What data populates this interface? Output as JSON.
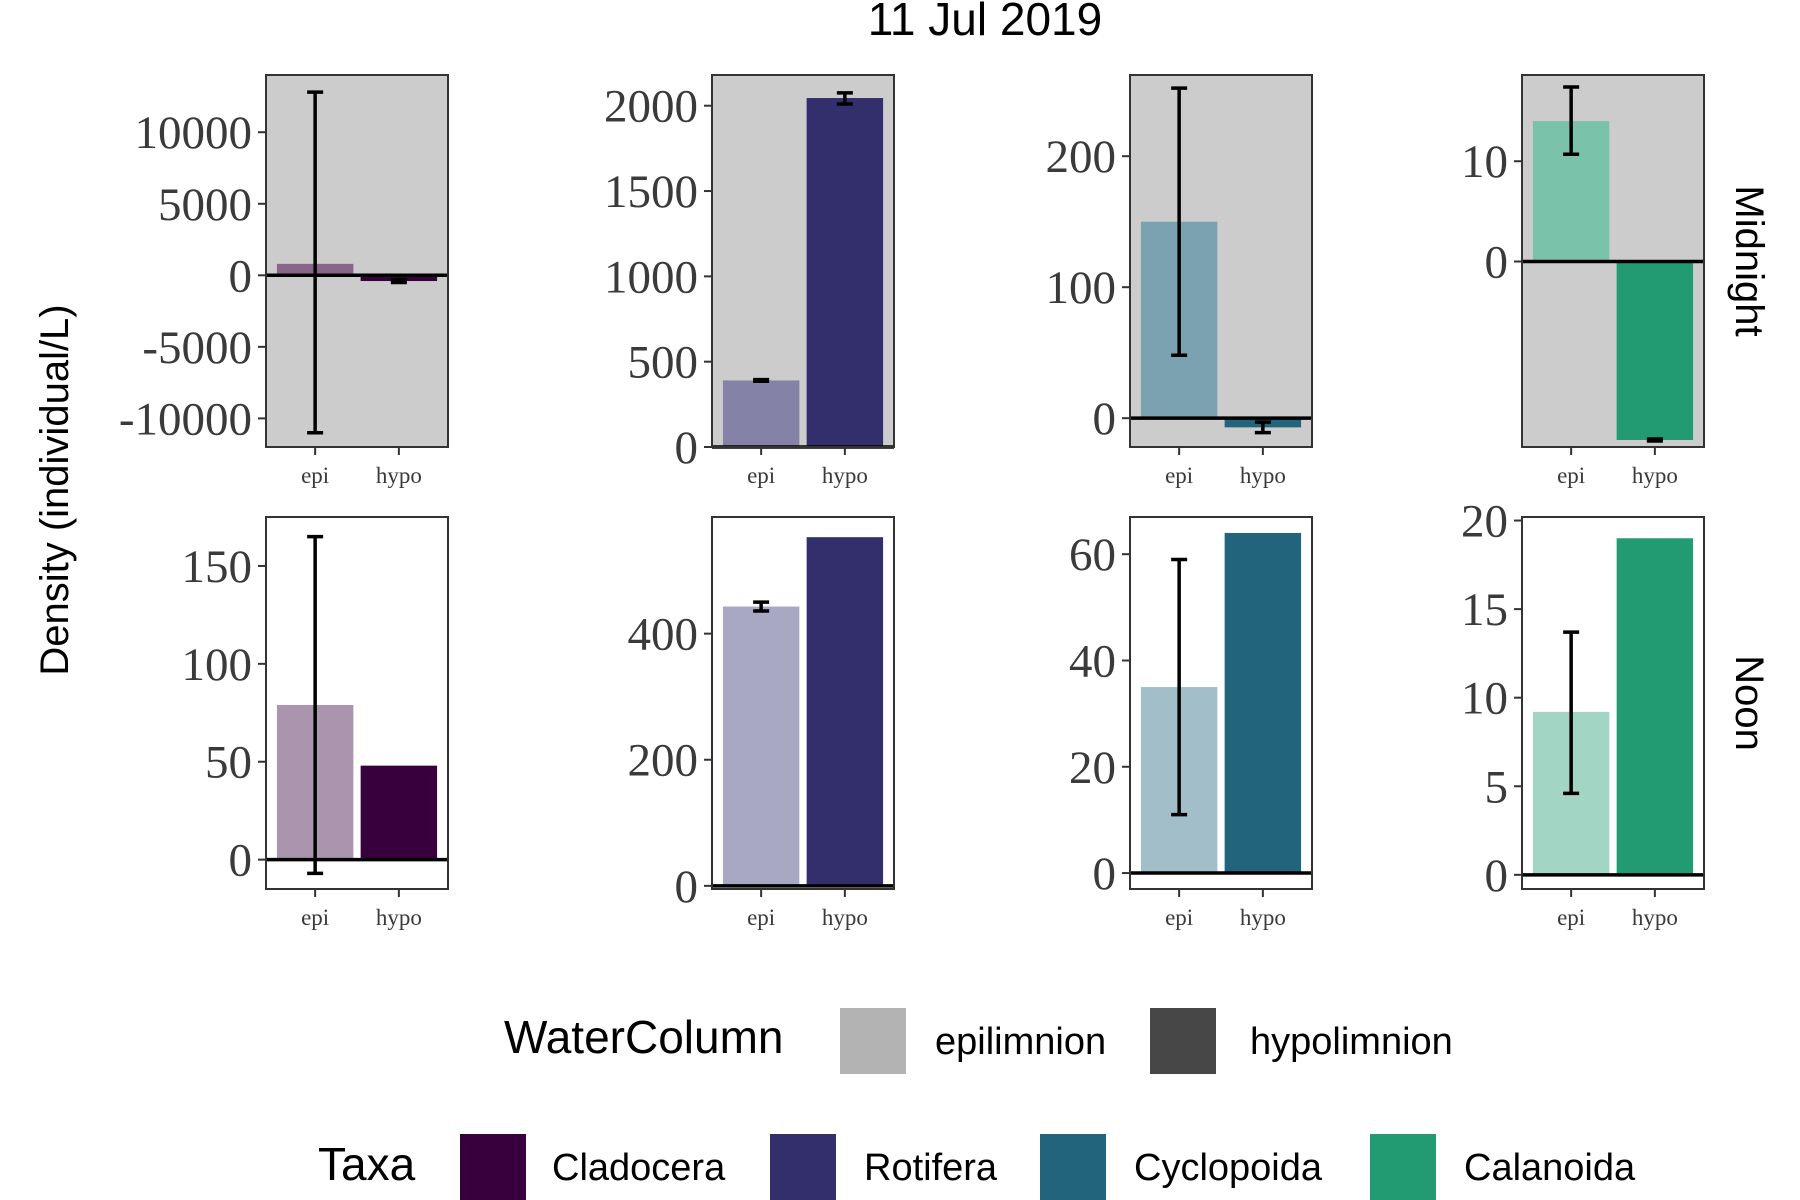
{
  "chart_data": {
    "type": "bar",
    "title": "11 Jul 2019",
    "ylabel": "Density (individual/L)",
    "categories": [
      "epi",
      "hypo"
    ],
    "rows": [
      "Midnight",
      "Noon"
    ],
    "water_column_legend": {
      "title": "WaterColumn",
      "entries": [
        {
          "label": "epilimnion",
          "color": "#b3b3b3"
        },
        {
          "label": "hypolimnion",
          "color": "#474747"
        }
      ]
    },
    "taxa_legend": {
      "title": "Taxa",
      "entries": [
        {
          "label": "Cladocera",
          "color": "#38003c"
        },
        {
          "label": "Rotifera",
          "color": "#332f6d"
        },
        {
          "label": "Cyclopoida",
          "color": "#21647b"
        },
        {
          "label": "Calanoida",
          "color": "#229b72"
        }
      ]
    },
    "panels": [
      {
        "row": "Midnight",
        "taxon": "Cladocera",
        "color": "#38003c",
        "background": "#cccccc",
        "ylim": [
          -12000,
          14000
        ],
        "yticks": [
          -10000,
          -5000,
          0,
          5000,
          10000
        ],
        "values": [
          800,
          -400
        ],
        "error": [
          [
            -11000,
            12800
          ],
          [
            -500,
            -300
          ]
        ]
      },
      {
        "row": "Midnight",
        "taxon": "Rotifera",
        "color": "#332f6d",
        "background": "#cccccc",
        "ylim": [
          0,
          2180
        ],
        "yticks": [
          0,
          500,
          1000,
          1500,
          2000
        ],
        "values": [
          390,
          2045
        ],
        "error": [
          [
            385,
            395
          ],
          [
            2010,
            2075
          ]
        ]
      },
      {
        "row": "Midnight",
        "taxon": "Cyclopoida",
        "color": "#21647b",
        "background": "#cccccc",
        "ylim": [
          -22,
          262
        ],
        "yticks": [
          0,
          100,
          200
        ],
        "values": [
          150,
          -7
        ],
        "error": [
          [
            48,
            252
          ],
          [
            -11,
            -3
          ]
        ]
      },
      {
        "row": "Midnight",
        "taxon": "Calanoida",
        "color": "#229b72",
        "background": "#cccccc",
        "ylim": [
          -18.5,
          18.6
        ],
        "yticks": [
          0,
          10
        ],
        "values": [
          14,
          -17.8
        ],
        "error": [
          [
            10.7,
            17.4
          ],
          [
            -17.9,
            -17.7
          ]
        ]
      },
      {
        "row": "Noon",
        "taxon": "Cladocera",
        "color": "#38003c",
        "background": "#ffffff",
        "ylim": [
          -15,
          175
        ],
        "yticks": [
          0,
          50,
          100,
          150
        ],
        "values": [
          79,
          48
        ],
        "error": [
          [
            -7,
            165
          ],
          null
        ]
      },
      {
        "row": "Noon",
        "taxon": "Rotifera",
        "color": "#332f6d",
        "background": "#ffffff",
        "ylim": [
          -5,
          585
        ],
        "yticks": [
          0,
          200,
          400
        ],
        "values": [
          443,
          553
        ],
        "error": [
          [
            436,
            450
          ],
          null
        ]
      },
      {
        "row": "Noon",
        "taxon": "Cyclopoida",
        "color": "#21647b",
        "background": "#ffffff",
        "ylim": [
          -3,
          67
        ],
        "yticks": [
          0,
          20,
          40,
          60
        ],
        "values": [
          35,
          64
        ],
        "error": [
          [
            11,
            59
          ],
          null
        ]
      },
      {
        "row": "Noon",
        "taxon": "Calanoida",
        "color": "#229b72",
        "background": "#ffffff",
        "ylim": [
          -0.8,
          20.2
        ],
        "yticks": [
          0,
          5,
          10,
          15,
          20
        ],
        "values": [
          9.2,
          19
        ],
        "error": [
          [
            4.6,
            13.7
          ],
          null
        ]
      }
    ]
  }
}
